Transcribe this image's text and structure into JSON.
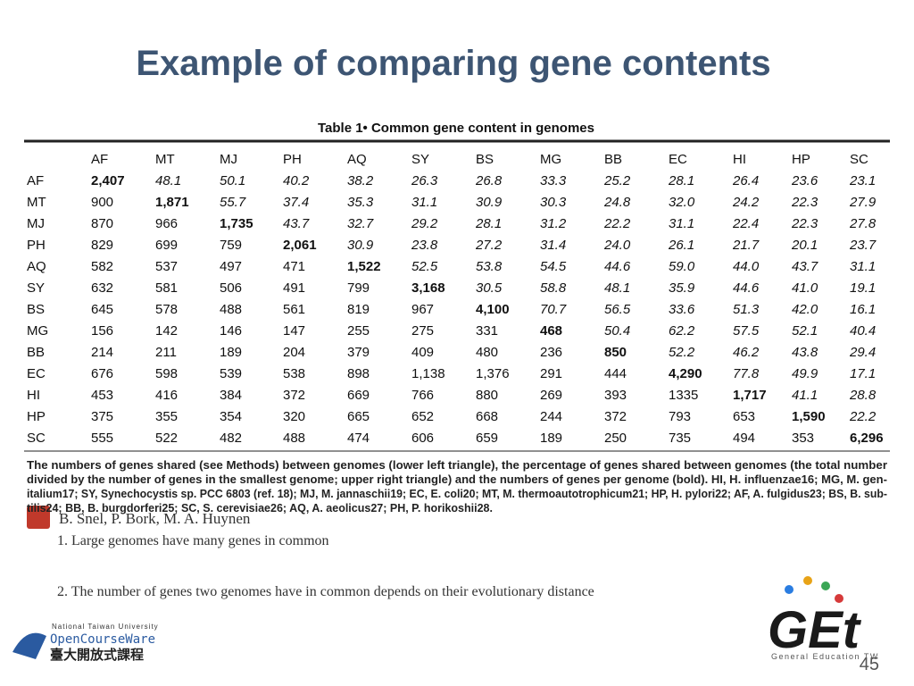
{
  "header": {
    "title": "Example of comparing gene contents"
  },
  "table": {
    "title": "Table 1• Common gene content in genomes",
    "columns": [
      "AF",
      "MT",
      "MJ",
      "PH",
      "AQ",
      "SY",
      "BS",
      "MG",
      "BB",
      "EC",
      "HI",
      "HP",
      "SC"
    ],
    "rows": [
      {
        "label": "AF",
        "cells": [
          "2,407",
          "48.1",
          "50.1",
          "40.2",
          "38.2",
          "26.3",
          "26.8",
          "33.3",
          "25.2",
          "28.1",
          "26.4",
          "23.6",
          "23.1"
        ]
      },
      {
        "label": "MT",
        "cells": [
          "900",
          "1,871",
          "55.7",
          "37.4",
          "35.3",
          "31.1",
          "30.9",
          "30.3",
          "24.8",
          "32.0",
          "24.2",
          "22.3",
          "27.9"
        ]
      },
      {
        "label": "MJ",
        "cells": [
          "870",
          "966",
          "1,735",
          "43.7",
          "32.7",
          "29.2",
          "28.1",
          "31.2",
          "22.2",
          "31.1",
          "22.4",
          "22.3",
          "27.8"
        ]
      },
      {
        "label": "PH",
        "cells": [
          "829",
          "699",
          "759",
          "2,061",
          "30.9",
          "23.8",
          "27.2",
          "31.4",
          "24.0",
          "26.1",
          "21.7",
          "20.1",
          "23.7"
        ]
      },
      {
        "label": "AQ",
        "cells": [
          "582",
          "537",
          "497",
          "471",
          "1,522",
          "52.5",
          "53.8",
          "54.5",
          "44.6",
          "59.0",
          "44.0",
          "43.7",
          "31.1"
        ]
      },
      {
        "label": "SY",
        "cells": [
          "632",
          "581",
          "506",
          "491",
          "799",
          "3,168",
          "30.5",
          "58.8",
          "48.1",
          "35.9",
          "44.6",
          "41.0",
          "19.1"
        ]
      },
      {
        "label": "BS",
        "cells": [
          "645",
          "578",
          "488",
          "561",
          "819",
          "967",
          "4,100",
          "70.7",
          "56.5",
          "33.6",
          "51.3",
          "42.0",
          "16.1"
        ]
      },
      {
        "label": "MG",
        "cells": [
          "156",
          "142",
          "146",
          "147",
          "255",
          "275",
          "331",
          "468",
          "50.4",
          "62.2",
          "57.5",
          "52.1",
          "40.4"
        ]
      },
      {
        "label": "BB",
        "cells": [
          "214",
          "211",
          "189",
          "204",
          "379",
          "409",
          "480",
          "236",
          "850",
          "52.2",
          "46.2",
          "43.8",
          "29.4"
        ]
      },
      {
        "label": "EC",
        "cells": [
          "676",
          "598",
          "539",
          "538",
          "898",
          "1,138",
          "1,376",
          "291",
          "444",
          "4,290",
          "77.8",
          "49.9",
          "17.1"
        ]
      },
      {
        "label": "HI",
        "cells": [
          "453",
          "416",
          "384",
          "372",
          "669",
          "766",
          "880",
          "269",
          "393",
          "1335",
          "1,717",
          "41.1",
          "28.8"
        ]
      },
      {
        "label": "HP",
        "cells": [
          "375",
          "355",
          "354",
          "320",
          "665",
          "652",
          "668",
          "244",
          "372",
          "793",
          "653",
          "1,590",
          "22.2"
        ]
      },
      {
        "label": "SC",
        "cells": [
          "555",
          "522",
          "482",
          "488",
          "474",
          "606",
          "659",
          "189",
          "250",
          "735",
          "494",
          "353",
          "6,296"
        ]
      }
    ],
    "caption": [
      "The numbers of genes shared (see Methods) between genomes (lower left triangle), the percentage of genes shared between genomes (the total number",
      "divided by the number of genes in the smallest genome; upper right triangle) and the numbers of genes per genome (bold). HI, H. influenzae16; MG, M. gen-",
      "italium17; SY, Synechocystis sp. PCC 6803 (ref. 18); MJ, M. jannaschii19; EC, E. coli20; MT, M. thermoautotrophicum21; HP, H. pylori22; AF, A. fulgidus23; BS, B. sub-",
      "tilis24; BB, B. burgdorferi25; SC, S. cerevisiae26; AQ, A. aeolicus27; PH, P. horikoshii28."
    ]
  },
  "citation": "B. Snel, P. Bork, M. A. Huynen",
  "bullets": [
    "1. Large genomes have many genes in common",
    "2. The number of genes two genomes have in common depends on their evolutionary distance"
  ],
  "footer": {
    "university": "National Taiwan University",
    "ocw": "OpenCourseWare",
    "ocw_chinese": "臺大開放式課程",
    "get_logo": "GEt",
    "get_subtitle": "General Education TW",
    "page_number": "45"
  }
}
